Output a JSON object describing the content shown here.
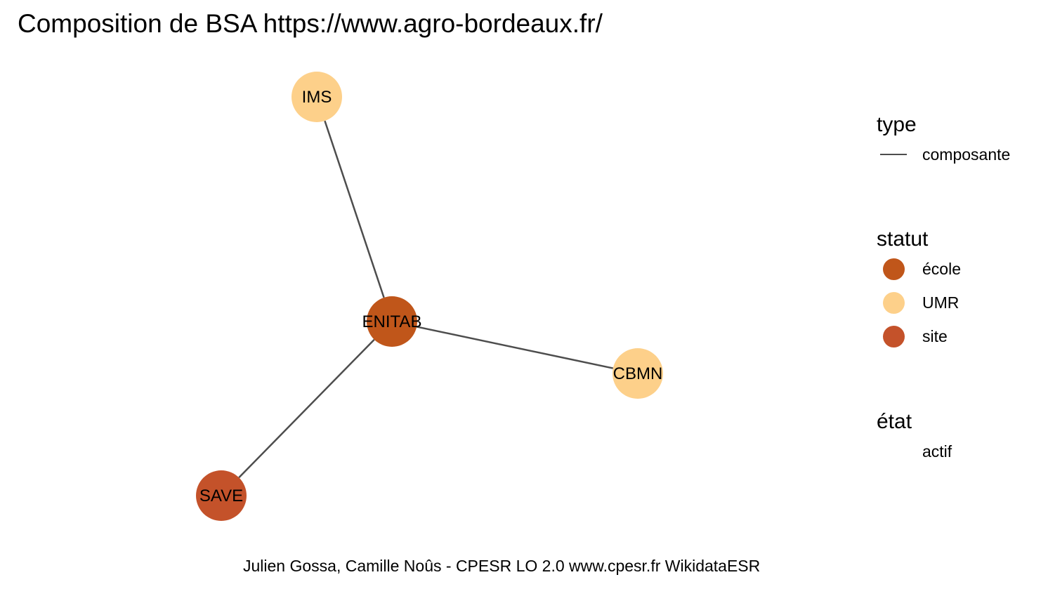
{
  "title": "Composition de BSA https://www.agro-bordeaux.fr/",
  "caption": "Julien Gossa, Camille Noûs - CPESR LO 2.0 www.cpesr.fr WikidataESR",
  "colors": {
    "ecole": "#c0561a",
    "UMR": "#fdd08a",
    "site": "#c4522a",
    "edge": "#4d4d4d"
  },
  "graph": {
    "nodes": [
      {
        "id": "IMS",
        "label": "IMS",
        "statut": "UMR"
      },
      {
        "id": "ENITAB",
        "label": "ENITAB",
        "statut": "école"
      },
      {
        "id": "CBMN",
        "label": "CBMN",
        "statut": "UMR"
      },
      {
        "id": "SAVE",
        "label": "SAVE",
        "statut": "site"
      }
    ],
    "edges": [
      {
        "source": "ENITAB",
        "target": "IMS",
        "type": "composante"
      },
      {
        "source": "ENITAB",
        "target": "CBMN",
        "type": "composante"
      },
      {
        "source": "ENITAB",
        "target": "SAVE",
        "type": "composante"
      }
    ]
  },
  "legend": {
    "type": {
      "title": "type",
      "items": [
        {
          "label": "composante",
          "key": "line",
          "color": "#4d4d4d"
        }
      ]
    },
    "statut": {
      "title": "statut",
      "items": [
        {
          "label": "école",
          "key": "dot",
          "color": "#c0561a"
        },
        {
          "label": "UMR",
          "key": "dot",
          "color": "#fdd08a"
        },
        {
          "label": "site",
          "key": "dot",
          "color": "#c4522a"
        }
      ]
    },
    "etat": {
      "title": "état",
      "items": [
        {
          "label": "actif",
          "key": "none"
        }
      ]
    }
  }
}
